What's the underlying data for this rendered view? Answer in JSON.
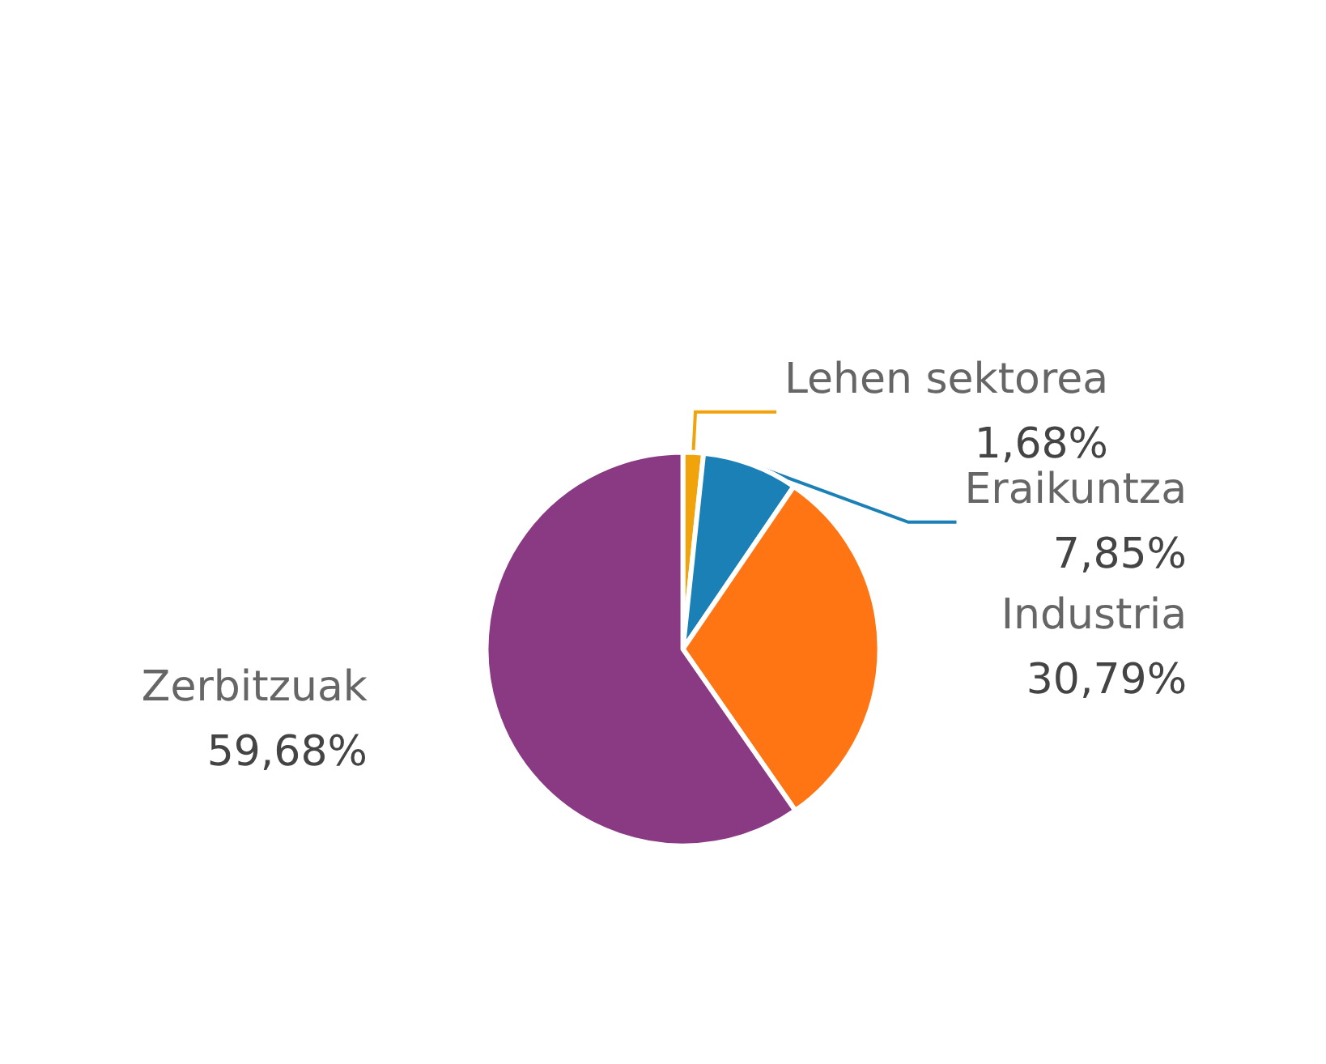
{
  "chart_data": {
    "type": "pie",
    "categories": [
      "Lehen sektorea",
      "Eraikuntza",
      "Industria",
      "Zerbitzuak"
    ],
    "values": [
      1.68,
      7.85,
      30.79,
      59.68
    ],
    "value_labels": [
      "1,68%",
      "7,85%",
      "30,79%",
      "59,68%"
    ],
    "colors": [
      "#f0a30a",
      "#1a80b6",
      "#ff7514",
      "#8a3a82"
    ]
  }
}
